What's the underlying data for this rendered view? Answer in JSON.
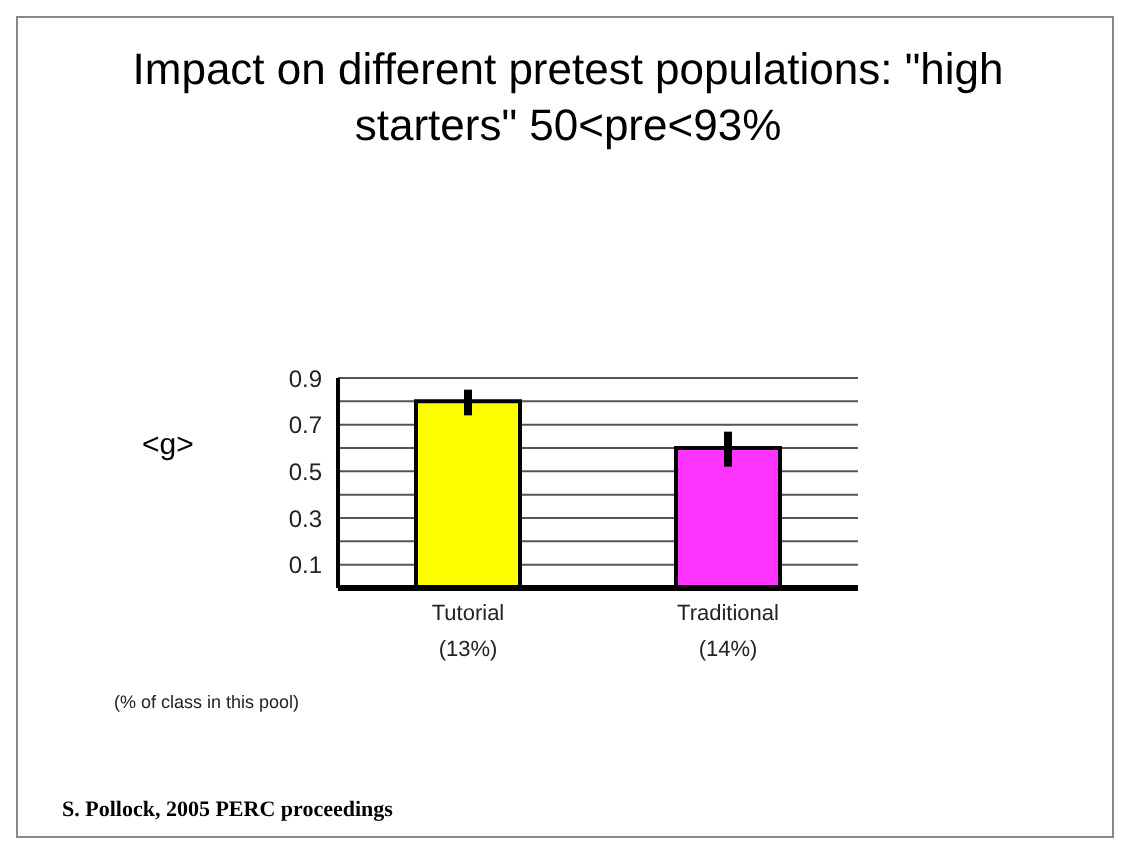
{
  "chart_data": {
    "type": "bar",
    "title": "Impact on different pretest populations: \"high starters\"  50<pre<93%",
    "ylabel": "<g>",
    "categories": [
      "Tutorial",
      "Traditional"
    ],
    "values": [
      0.8,
      0.6
    ],
    "colors": [
      "#ffff00",
      "#ff33ff"
    ],
    "errors": [
      [
        0.74,
        0.85
      ],
      [
        0.52,
        0.67
      ]
    ],
    "ylim": [
      0,
      0.9
    ],
    "yticks": [
      {
        "value": 0.1,
        "label": "0.1"
      },
      {
        "value": 0.2,
        "label": null
      },
      {
        "value": 0.3,
        "label": "0.3"
      },
      {
        "value": 0.4,
        "label": null
      },
      {
        "value": 0.5,
        "label": "0.5"
      },
      {
        "value": 0.6,
        "label": null
      },
      {
        "value": 0.7,
        "label": "0.7"
      },
      {
        "value": 0.8,
        "label": null
      },
      {
        "value": 0.9,
        "label": "0.9"
      }
    ],
    "grid": "y",
    "annotations": [
      "(% of class in this pool)",
      "(13%)",
      "(14%)",
      "S. Pollock, 2005 PERC proceedings"
    ]
  }
}
